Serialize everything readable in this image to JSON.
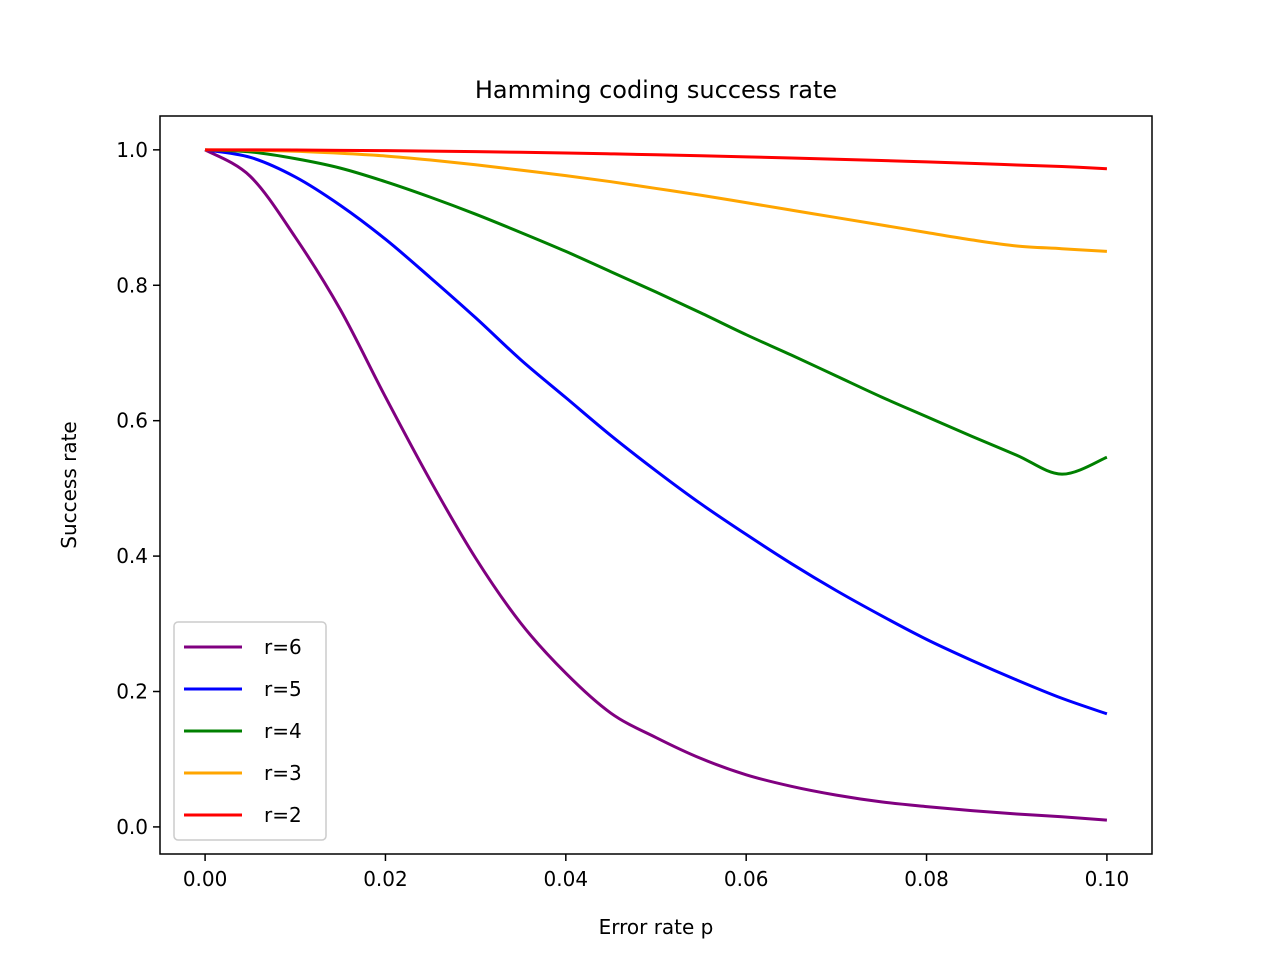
{
  "chart_data": {
    "type": "line",
    "title": "Hamming coding success rate",
    "xlabel": "Error rate p",
    "ylabel": "Success rate",
    "xlim": [
      -0.005,
      0.105
    ],
    "ylim": [
      -0.04,
      1.05
    ],
    "x_ticks": [
      0.0,
      0.02,
      0.04,
      0.06,
      0.08,
      0.1
    ],
    "x_tick_labels": [
      "0.00",
      "0.02",
      "0.04",
      "0.06",
      "0.08",
      "0.10"
    ],
    "y_ticks": [
      0.0,
      0.2,
      0.4,
      0.6,
      0.8,
      1.0
    ],
    "y_tick_labels": [
      "0.0",
      "0.2",
      "0.4",
      "0.6",
      "0.8",
      "1.0"
    ],
    "grid": false,
    "legend_position": "lower-left",
    "x": [
      0.0,
      0.005,
      0.01,
      0.015,
      0.02,
      0.025,
      0.03,
      0.035,
      0.04,
      0.045,
      0.05,
      0.055,
      0.06,
      0.065,
      0.07,
      0.075,
      0.08,
      0.085,
      0.09,
      0.095,
      0.1
    ],
    "series": [
      {
        "name": "r=6",
        "color": "#800080",
        "values": [
          1.0,
          0.961,
          0.871,
          0.764,
          0.635,
          0.511,
          0.397,
          0.301,
          0.227,
          0.168,
          0.132,
          0.101,
          0.077,
          0.06,
          0.047,
          0.037,
          0.03,
          0.024,
          0.019,
          0.015,
          0.01
        ]
      },
      {
        "name": "r=5",
        "color": "#0000ff",
        "values": [
          1.0,
          0.989,
          0.96,
          0.918,
          0.868,
          0.811,
          0.752,
          0.69,
          0.634,
          0.578,
          0.526,
          0.477,
          0.432,
          0.389,
          0.349,
          0.312,
          0.277,
          0.246,
          0.217,
          0.19,
          0.167
        ]
      },
      {
        "name": "r=4",
        "color": "#008000",
        "values": [
          1.0,
          0.997,
          0.987,
          0.973,
          0.953,
          0.93,
          0.905,
          0.878,
          0.85,
          0.82,
          0.79,
          0.759,
          0.727,
          0.697,
          0.666,
          0.635,
          0.606,
          0.577,
          0.549,
          0.521,
          0.546
        ]
      },
      {
        "name": "r=3",
        "color": "#ffa500",
        "values": [
          1.0,
          0.9995,
          0.998,
          0.995,
          0.991,
          0.985,
          0.978,
          0.97,
          0.962,
          0.953,
          0.943,
          0.933,
          0.922,
          0.911,
          0.9,
          0.889,
          0.878,
          0.867,
          0.858,
          0.854,
          0.85
        ]
      },
      {
        "name": "r=2",
        "color": "#ff0000",
        "values": [
          1.0,
          0.99993,
          0.9997,
          0.9993,
          0.9988,
          0.9982,
          0.9974,
          0.9964,
          0.9953,
          0.9941,
          0.9928,
          0.9913,
          0.9897,
          0.988,
          0.9862,
          0.9843,
          0.9822,
          0.98,
          0.9777,
          0.9754,
          0.972
        ]
      }
    ]
  }
}
